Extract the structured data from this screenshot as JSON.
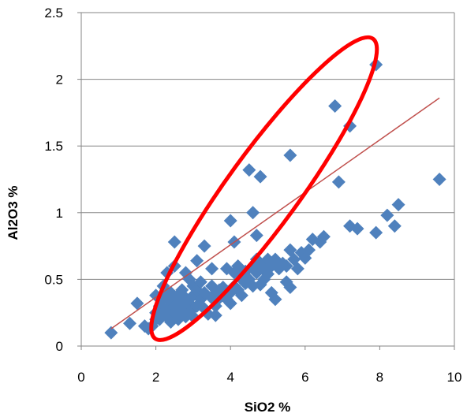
{
  "chart_data": {
    "type": "scatter",
    "title": "",
    "xlabel": "SiO2 %",
    "ylabel": "Al2O3 %",
    "xlim": [
      0,
      10
    ],
    "ylim": [
      0,
      2.5
    ],
    "x_ticks": [
      "0",
      "2",
      "4",
      "6",
      "8",
      "10"
    ],
    "y_ticks": [
      "0",
      "0.5",
      "1",
      "1.5",
      "2",
      "2.5"
    ],
    "grid": "horizontal",
    "legend": "none",
    "colors": {
      "points": "#4f81bd",
      "trendline": "#c0504d",
      "ellipse": "#ff0000",
      "grid": "#868686"
    },
    "trendline": {
      "x": [
        0.8,
        9.6
      ],
      "y": [
        0.13,
        1.86
      ]
    },
    "ellipse_annotation": {
      "center": [
        4.9,
        1.18
      ],
      "rx": 3.95,
      "ry": 0.45,
      "rotation_deg": -54
    },
    "series": [
      {
        "x": [
          0.8,
          1.3,
          1.5,
          1.7,
          1.8,
          1.9,
          2.0,
          2.0,
          2.1,
          2.1,
          2.2,
          2.2,
          2.3,
          2.3,
          2.4,
          2.4,
          2.4,
          2.5,
          2.5,
          2.5,
          2.6,
          2.6,
          2.6,
          2.7,
          2.7,
          2.7,
          2.8,
          2.8,
          2.8,
          2.9,
          2.9,
          2.9,
          3.0,
          3.0,
          3.0,
          3.1,
          3.1,
          3.2,
          3.2,
          3.3,
          3.3,
          3.4,
          3.5,
          3.5,
          3.5,
          3.6,
          3.6,
          3.7,
          3.7,
          3.8,
          3.9,
          3.9,
          4.0,
          4.0,
          4.1,
          4.1,
          4.2,
          4.2,
          4.3,
          4.3,
          4.4,
          4.4,
          4.5,
          4.6,
          4.6,
          4.7,
          4.7,
          4.8,
          4.8,
          4.9,
          4.9,
          5.0,
          5.0,
          5.1,
          5.1,
          5.2,
          5.2,
          5.3,
          5.4,
          5.5,
          5.5,
          5.6,
          5.6,
          5.7,
          5.8,
          5.9,
          6.0,
          6.1,
          6.2,
          6.4,
          6.5,
          2.2,
          2.3,
          2.5,
          2.5,
          3.1,
          3.3,
          4.0,
          4.1,
          4.7,
          4.5,
          4.6,
          4.8,
          5.6,
          6.8,
          7.2,
          6.9,
          7.9,
          7.2,
          7.4,
          7.9,
          8.2,
          8.4,
          8.5,
          9.6,
          2.8,
          3.0,
          3.6,
          2.6,
          2.0,
          2.3
        ],
        "y": [
          0.1,
          0.17,
          0.32,
          0.15,
          0.13,
          0.15,
          0.38,
          0.25,
          0.2,
          0.3,
          0.45,
          0.35,
          0.28,
          0.22,
          0.4,
          0.33,
          0.18,
          0.25,
          0.35,
          0.3,
          0.22,
          0.38,
          0.28,
          0.33,
          0.24,
          0.42,
          0.3,
          0.36,
          0.22,
          0.5,
          0.32,
          0.26,
          0.45,
          0.38,
          0.28,
          0.42,
          0.3,
          0.48,
          0.35,
          0.28,
          0.4,
          0.24,
          0.45,
          0.36,
          0.58,
          0.4,
          0.3,
          0.42,
          0.36,
          0.44,
          0.35,
          0.58,
          0.4,
          0.32,
          0.45,
          0.55,
          0.42,
          0.6,
          0.5,
          0.38,
          0.56,
          0.47,
          0.5,
          0.6,
          0.45,
          0.65,
          0.55,
          0.62,
          0.46,
          0.58,
          0.5,
          0.65,
          0.54,
          0.6,
          0.4,
          0.35,
          0.65,
          0.58,
          0.62,
          0.48,
          0.6,
          0.44,
          0.72,
          0.65,
          0.58,
          0.7,
          0.66,
          0.72,
          0.8,
          0.78,
          0.82,
          0.25,
          0.55,
          0.78,
          0.6,
          0.64,
          0.75,
          0.94,
          0.78,
          0.83,
          1.32,
          1.0,
          1.27,
          1.43,
          1.8,
          1.65,
          1.23,
          2.11,
          0.9,
          0.88,
          0.85,
          0.98,
          0.9,
          1.06,
          1.25,
          0.55,
          0.22,
          0.23,
          0.2,
          0.2,
          0.4
        ]
      }
    ]
  }
}
